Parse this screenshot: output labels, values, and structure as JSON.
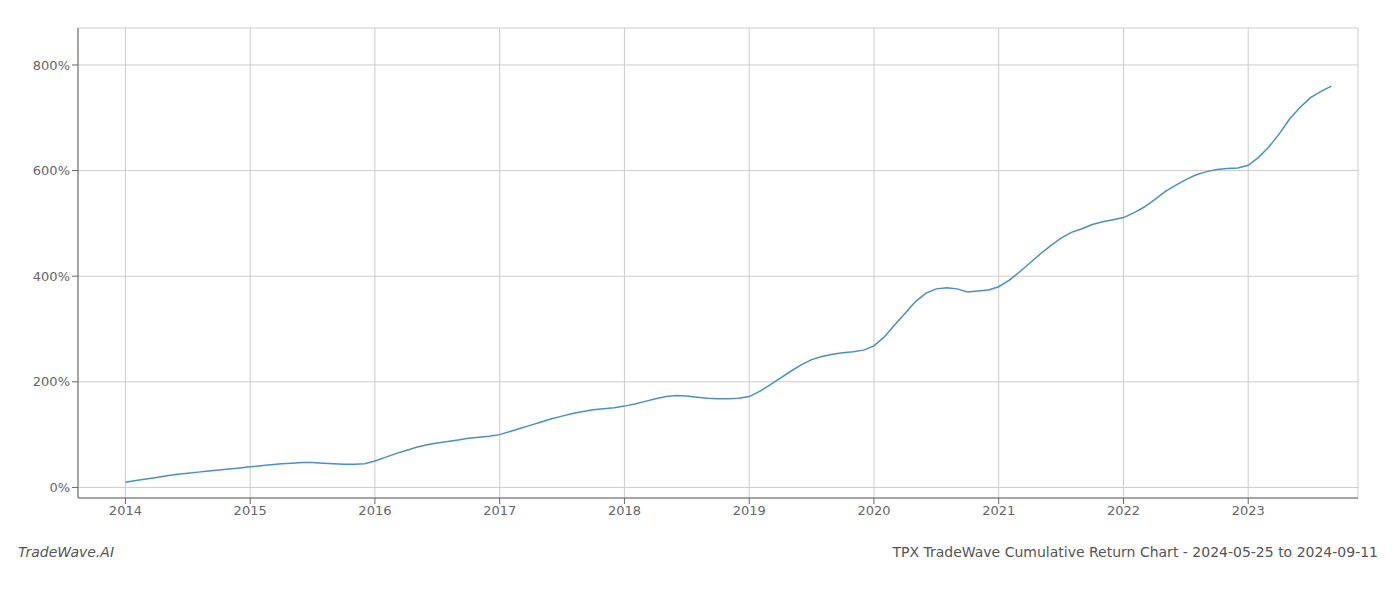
{
  "chart_data": {
    "type": "line",
    "title": "TPX TradeWave Cumulative Return Chart - 2024-05-25 to 2024-09-11",
    "annotations": [
      "TradeWave.AI"
    ],
    "color": "#4a90c4",
    "grid": true,
    "xlim": [
      2013.62,
      2023.88
    ],
    "xticks": [
      2014,
      2015,
      2016,
      2017,
      2018,
      2019,
      2020,
      2021,
      2022,
      2023
    ],
    "ylim": [
      -20,
      870
    ],
    "yticks": [
      {
        "value": 0,
        "label": "0%"
      },
      {
        "value": 200,
        "label": "200%"
      },
      {
        "value": 400,
        "label": "400%"
      },
      {
        "value": 600,
        "label": "600%"
      },
      {
        "value": 800,
        "label": "800%"
      }
    ],
    "x": [
      2014.0,
      2014.083,
      2014.167,
      2014.25,
      2014.333,
      2014.417,
      2014.5,
      2014.583,
      2014.667,
      2014.75,
      2014.833,
      2014.917,
      2015.0,
      2015.083,
      2015.167,
      2015.25,
      2015.333,
      2015.417,
      2015.5,
      2015.583,
      2015.667,
      2015.75,
      2015.833,
      2015.917,
      2016.0,
      2016.083,
      2016.167,
      2016.25,
      2016.333,
      2016.417,
      2016.5,
      2016.583,
      2016.667,
      2016.75,
      2016.833,
      2016.917,
      2017.0,
      2017.083,
      2017.167,
      2017.25,
      2017.333,
      2017.417,
      2017.5,
      2017.583,
      2017.667,
      2017.75,
      2017.833,
      2017.917,
      2018.0,
      2018.083,
      2018.167,
      2018.25,
      2018.333,
      2018.417,
      2018.5,
      2018.583,
      2018.667,
      2018.75,
      2018.833,
      2018.917,
      2019.0,
      2019.083,
      2019.167,
      2019.25,
      2019.333,
      2019.417,
      2019.5,
      2019.583,
      2019.667,
      2019.75,
      2019.833,
      2019.917,
      2020.0,
      2020.083,
      2020.167,
      2020.25,
      2020.333,
      2020.417,
      2020.5,
      2020.583,
      2020.667,
      2020.75,
      2020.833,
      2020.917,
      2021.0,
      2021.083,
      2021.167,
      2021.25,
      2021.333,
      2021.417,
      2021.5,
      2021.583,
      2021.667,
      2021.75,
      2021.833,
      2021.917,
      2022.0,
      2022.083,
      2022.167,
      2022.25,
      2022.333,
      2022.417,
      2022.5,
      2022.583,
      2022.667,
      2022.75,
      2022.833,
      2022.917,
      2023.0,
      2023.083,
      2023.167,
      2023.25,
      2023.333,
      2023.417,
      2023.5,
      2023.583,
      2023.667
    ],
    "values": [
      10,
      13,
      16,
      19,
      22,
      25,
      27,
      29,
      31,
      33,
      35,
      37,
      39,
      41,
      43,
      45,
      46,
      47,
      47,
      46,
      45,
      44,
      44,
      45,
      50,
      57,
      64,
      70,
      76,
      81,
      84,
      87,
      90,
      93,
      95,
      97,
      100,
      106,
      112,
      118,
      124,
      130,
      135,
      140,
      144,
      147,
      149,
      151,
      154,
      158,
      163,
      168,
      172,
      174,
      173,
      171,
      169,
      168,
      168,
      169,
      172,
      182,
      194,
      207,
      220,
      232,
      242,
      248,
      252,
      255,
      257,
      260,
      268,
      285,
      308,
      330,
      352,
      368,
      376,
      378,
      376,
      370,
      372,
      374,
      380,
      392,
      408,
      425,
      442,
      458,
      472,
      483,
      490,
      498,
      503,
      507,
      511,
      520,
      531,
      545,
      560,
      572,
      583,
      592,
      598,
      602,
      604,
      605,
      610,
      625,
      645,
      670,
      698,
      720,
      738,
      750,
      760
    ]
  }
}
